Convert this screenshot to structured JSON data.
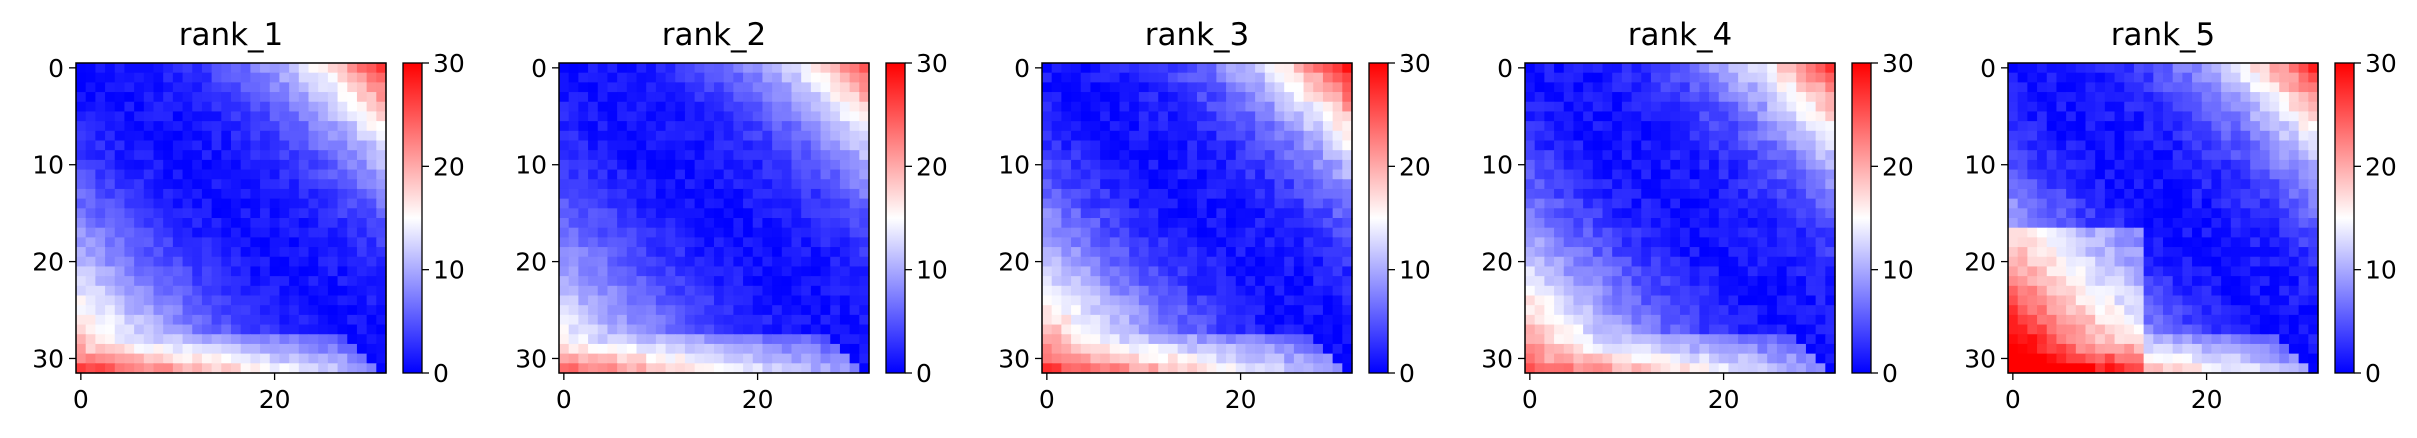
{
  "chart_data": {
    "type": "heatmap",
    "colormap": "bwr",
    "grid": false,
    "matrix_size": 32,
    "xticks": [
      "0",
      "20"
    ],
    "yticks": [
      "0",
      "10",
      "20",
      "30"
    ],
    "colorbar": {
      "range": [
        0,
        30
      ],
      "ticks": [
        "0",
        "10",
        "20",
        "30"
      ]
    },
    "panels": [
      {
        "title": "rank_1",
        "far_upper": 26,
        "far_lower": 21,
        "bottom_rows": 26,
        "noise": 2.5,
        "blob": 0
      },
      {
        "title": "rank_2",
        "far_upper": 24,
        "far_lower": 17,
        "bottom_rows": 24,
        "noise": 2.5,
        "blob": 0
      },
      {
        "title": "rank_3",
        "far_upper": 28,
        "far_lower": 23,
        "bottom_rows": 26,
        "noise": 3,
        "blob": 0
      },
      {
        "title": "rank_4",
        "far_upper": 26,
        "far_lower": 23,
        "bottom_rows": 25,
        "noise": 3,
        "blob": 0
      },
      {
        "title": "rank_5",
        "far_upper": 27,
        "far_lower": 28,
        "bottom_rows": 28,
        "noise": 3,
        "blob": 6
      }
    ]
  }
}
